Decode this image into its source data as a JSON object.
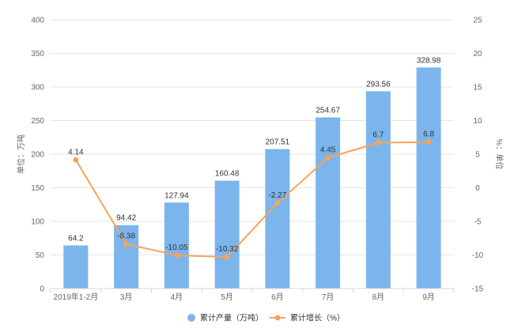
{
  "chart_data": {
    "type": "bar",
    "categories": [
      "2019年1-2月",
      "3月",
      "4月",
      "5月",
      "6月",
      "7月",
      "8月",
      "9月"
    ],
    "series": [
      {
        "name": "累计产量（万吨）",
        "type": "bar",
        "axis": "left",
        "color": "#7cb5ec",
        "values": [
          64.2,
          94.42,
          127.94,
          160.48,
          207.51,
          254.67,
          293.56,
          328.98
        ],
        "labels": [
          "64.2",
          "94.42",
          "127.94",
          "160.48",
          "207.51",
          "254.67",
          "293.56",
          "328.98"
        ]
      },
      {
        "name": "累计增长（%）",
        "type": "line",
        "axis": "right",
        "color": "#f7a35c",
        "values": [
          4.14,
          -8.38,
          -10.05,
          -10.32,
          -2.27,
          4.45,
          6.7,
          6.8
        ],
        "labels": [
          "4.14",
          "-8.38",
          "-10.05",
          "-10.32",
          "-2.27",
          "4.45",
          "6.7",
          "6.8"
        ]
      }
    ],
    "ylabel_left": "单位：万吨",
    "ylabel_right": "%：单位",
    "ylim_left": [
      0,
      400
    ],
    "ylim_right": [
      -15,
      25
    ],
    "yticks_left": [
      "0",
      "50",
      "100",
      "150",
      "200",
      "250",
      "300",
      "350",
      "400"
    ],
    "yticks_right": [
      "-15",
      "-10",
      "-5",
      "0",
      "5",
      "10",
      "15",
      "20",
      "25"
    ],
    "grid": true,
    "legend_position": "bottom"
  }
}
